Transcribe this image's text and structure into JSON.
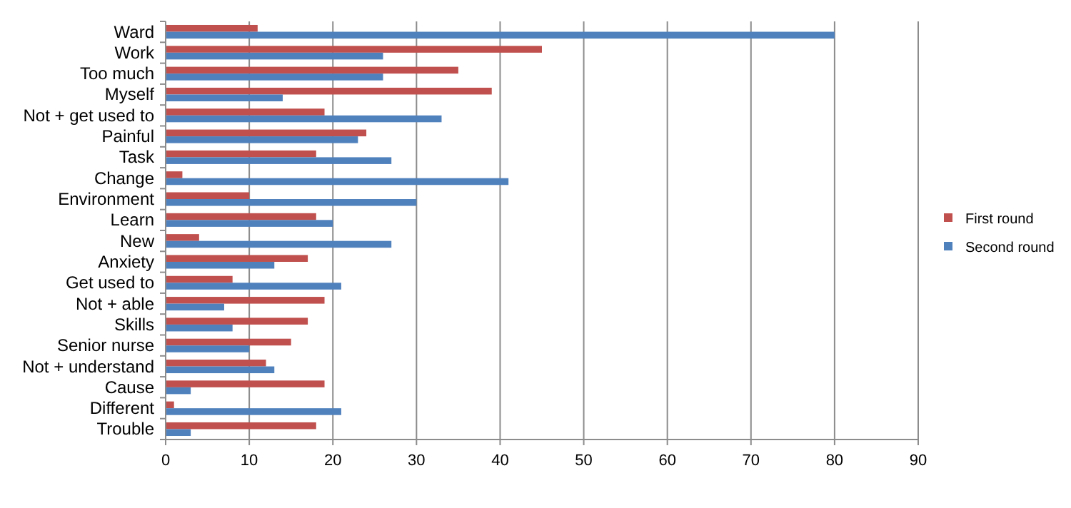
{
  "chart_data": {
    "type": "bar",
    "orientation": "horizontal",
    "categories": [
      "Ward",
      "Work",
      "Too much",
      "Myself",
      "Not + get used to",
      "Painful",
      "Task",
      "Change",
      "Environment",
      "Learn",
      "New",
      "Anxiety",
      "Get used to",
      "Not + able",
      "Skills",
      "Senior nurse",
      "Not + understand",
      "Cause",
      "Different",
      "Trouble"
    ],
    "series": [
      {
        "name": "First round",
        "color": "#c0504d",
        "values": [
          11,
          45,
          35,
          39,
          19,
          24,
          18,
          2,
          10,
          18,
          4,
          17,
          8,
          19,
          17,
          15,
          12,
          19,
          1,
          18
        ]
      },
      {
        "name": "Second round",
        "color": "#4f81bd",
        "values": [
          80,
          26,
          26,
          14,
          33,
          23,
          27,
          41,
          30,
          20,
          27,
          13,
          21,
          7,
          8,
          10,
          13,
          3,
          21,
          3
        ]
      }
    ],
    "xlim": [
      0,
      90
    ],
    "xticks": [
      0,
      10,
      20,
      30,
      40,
      50,
      60,
      70,
      80,
      90
    ],
    "grid": "x",
    "legend": "right"
  }
}
